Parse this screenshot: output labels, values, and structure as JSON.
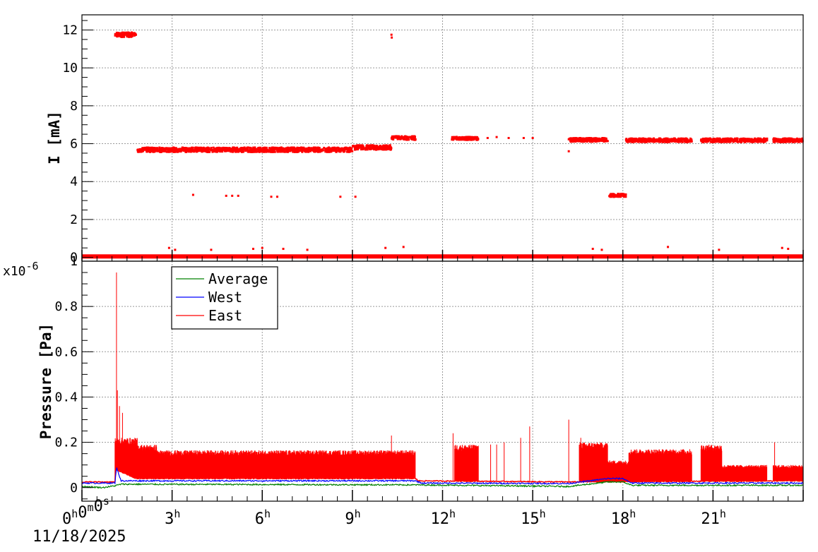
{
  "chart_data": [
    {
      "type": "scatter",
      "title": "",
      "xlabel": "",
      "ylabel": "I [mA]",
      "xlim": [
        0,
        24
      ],
      "ylim": [
        -0.2,
        12.8
      ],
      "yticks": [
        {
          "value": 0,
          "label": "0"
        },
        {
          "value": 2,
          "label": "2"
        },
        {
          "value": 4,
          "label": "4"
        },
        {
          "value": 6,
          "label": "6"
        },
        {
          "value": 8,
          "label": "8"
        },
        {
          "value": 10,
          "label": "10"
        },
        {
          "value": 12,
          "label": "12"
        }
      ],
      "grid": true,
      "color": "#ff0000",
      "segments": [
        {
          "x_start": 1.1,
          "x_end": 1.8,
          "y": 11.75,
          "jitter": 0.12
        },
        {
          "x_start": 1.85,
          "x_end": 9.0,
          "y": 5.68,
          "jitter": 0.12
        },
        {
          "x_start": 9.0,
          "x_end": 10.3,
          "y": 5.8,
          "jitter": 0.12
        },
        {
          "x_start": 10.3,
          "x_end": 11.1,
          "y": 6.3,
          "jitter": 0.1
        },
        {
          "x_start": 12.3,
          "x_end": 13.2,
          "y": 6.28,
          "jitter": 0.08
        },
        {
          "x_start": 16.2,
          "x_end": 17.5,
          "y": 6.2,
          "jitter": 0.1
        },
        {
          "x_start": 17.55,
          "x_end": 18.1,
          "y": 3.27,
          "jitter": 0.08
        },
        {
          "x_start": 18.1,
          "x_end": 20.3,
          "y": 6.18,
          "jitter": 0.1
        },
        {
          "x_start": 20.6,
          "x_end": 22.8,
          "y": 6.18,
          "jitter": 0.1
        },
        {
          "x_start": 23.0,
          "x_end": 24.0,
          "y": 6.18,
          "jitter": 0.1
        }
      ],
      "points": [
        {
          "x": 10.3,
          "y": 11.75
        },
        {
          "x": 10.31,
          "y": 11.6
        },
        {
          "x": 3.7,
          "y": 3.3
        },
        {
          "x": 4.8,
          "y": 3.25
        },
        {
          "x": 5.0,
          "y": 3.25
        },
        {
          "x": 5.2,
          "y": 3.25
        },
        {
          "x": 6.3,
          "y": 3.2
        },
        {
          "x": 6.5,
          "y": 3.2
        },
        {
          "x": 8.6,
          "y": 3.2
        },
        {
          "x": 9.1,
          "y": 3.2
        },
        {
          "x": 13.5,
          "y": 6.3
        },
        {
          "x": 13.8,
          "y": 6.35
        },
        {
          "x": 14.2,
          "y": 6.3
        },
        {
          "x": 14.7,
          "y": 6.3
        },
        {
          "x": 15.0,
          "y": 6.3
        },
        {
          "x": 16.2,
          "y": 5.6
        },
        {
          "x": 2.9,
          "y": 0.5
        },
        {
          "x": 3.1,
          "y": 0.4
        },
        {
          "x": 4.3,
          "y": 0.4
        },
        {
          "x": 5.7,
          "y": 0.45
        },
        {
          "x": 6.0,
          "y": 0.5
        },
        {
          "x": 6.7,
          "y": 0.45
        },
        {
          "x": 7.5,
          "y": 0.4
        },
        {
          "x": 10.1,
          "y": 0.5
        },
        {
          "x": 10.7,
          "y": 0.55
        },
        {
          "x": 17.0,
          "y": 0.45
        },
        {
          "x": 17.3,
          "y": 0.4
        },
        {
          "x": 19.5,
          "y": 0.55
        },
        {
          "x": 21.2,
          "y": 0.4
        },
        {
          "x": 23.3,
          "y": 0.5
        },
        {
          "x": 23.5,
          "y": 0.45
        }
      ],
      "baseline": {
        "y": 0.05,
        "x_start": 0,
        "x_end": 24
      }
    },
    {
      "type": "line",
      "title": "",
      "xlabel": "",
      "ylabel": "Pressure [Pa]",
      "y_multiplier": "x10",
      "y_multiplier_exp": "-6",
      "xlim": [
        0,
        24
      ],
      "ylim": [
        -0.06,
        1.0
      ],
      "yticks": [
        {
          "value": 0,
          "label": "0"
        },
        {
          "value": 0.2,
          "label": "0.2"
        },
        {
          "value": 0.4,
          "label": "0.4"
        },
        {
          "value": 0.6,
          "label": "0.6"
        },
        {
          "value": 0.8,
          "label": "0.8"
        },
        {
          "value": 1.0,
          "label": "1"
        }
      ],
      "grid": true,
      "legend_position": "top-left",
      "legend": [
        {
          "name": "Average",
          "color": "#008000"
        },
        {
          "name": "West",
          "color": "#0000ff"
        },
        {
          "name": "East",
          "color": "#ff0000"
        }
      ],
      "series": [
        {
          "name": "East",
          "color": "#ff0000",
          "baseline": [
            [
              0,
              0.025
            ],
            [
              1.1,
              0.025
            ],
            [
              1.12,
              0.08
            ],
            [
              1.8,
              0.04
            ],
            [
              11.1,
              0.04
            ],
            [
              11.2,
              0.03
            ],
            [
              16.2,
              0.025
            ],
            [
              24,
              0.03
            ]
          ],
          "bands": [
            {
              "x_start": 1.1,
              "x_end": 1.85,
              "peak": 0.22
            },
            {
              "x_start": 1.85,
              "x_end": 2.5,
              "peak": 0.19
            },
            {
              "x_start": 2.5,
              "x_end": 11.1,
              "peak": 0.165
            },
            {
              "x_start": 12.4,
              "x_end": 13.2,
              "peak": 0.19
            },
            {
              "x_start": 16.55,
              "x_end": 17.5,
              "peak": 0.2
            },
            {
              "x_start": 17.5,
              "x_end": 18.2,
              "peak": 0.12
            },
            {
              "x_start": 18.2,
              "x_end": 20.3,
              "peak": 0.17
            },
            {
              "x_start": 20.6,
              "x_end": 21.3,
              "peak": 0.19
            },
            {
              "x_start": 21.3,
              "x_end": 22.8,
              "peak": 0.1
            },
            {
              "x_start": 23.0,
              "x_end": 24.0,
              "peak": 0.1
            }
          ],
          "spikes": [
            {
              "x": 1.15,
              "y": 0.95
            },
            {
              "x": 1.18,
              "y": 0.43
            },
            {
              "x": 1.25,
              "y": 0.36
            },
            {
              "x": 1.35,
              "y": 0.33
            },
            {
              "x": 10.3,
              "y": 0.23
            },
            {
              "x": 12.35,
              "y": 0.24
            },
            {
              "x": 13.6,
              "y": 0.19
            },
            {
              "x": 13.8,
              "y": 0.19
            },
            {
              "x": 14.05,
              "y": 0.2
            },
            {
              "x": 14.6,
              "y": 0.22
            },
            {
              "x": 14.9,
              "y": 0.27
            },
            {
              "x": 16.2,
              "y": 0.3
            },
            {
              "x": 16.6,
              "y": 0.22
            },
            {
              "x": 23.05,
              "y": 0.2
            }
          ]
        },
        {
          "name": "West",
          "color": "#0000ff",
          "points": [
            [
              0,
              0.02
            ],
            [
              1.1,
              0.02
            ],
            [
              1.15,
              0.09
            ],
            [
              1.3,
              0.03
            ],
            [
              2.5,
              0.03
            ],
            [
              11.1,
              0.03
            ],
            [
              11.3,
              0.02
            ],
            [
              16.2,
              0.018
            ],
            [
              17.5,
              0.04
            ],
            [
              18.0,
              0.04
            ],
            [
              18.3,
              0.02
            ],
            [
              24,
              0.02
            ]
          ]
        },
        {
          "name": "Average",
          "color": "#008000",
          "points": [
            [
              0,
              0.005
            ],
            [
              0.7,
              0.0
            ],
            [
              1.1,
              0.008
            ],
            [
              1.3,
              0.015
            ],
            [
              11.1,
              0.012
            ],
            [
              16.2,
              0.005
            ],
            [
              17.5,
              0.025
            ],
            [
              18.0,
              0.025
            ],
            [
              18.3,
              0.01
            ],
            [
              24,
              0.01
            ]
          ]
        }
      ]
    }
  ],
  "x_axis": {
    "ticks": [
      {
        "value": 0,
        "main": "0",
        "sup": "h",
        "parts": [
          [
            "0",
            "h"
          ],
          [
            "0",
            "m"
          ],
          [
            "0",
            "s"
          ]
        ]
      },
      {
        "value": 3,
        "main": "3",
        "sup": "h"
      },
      {
        "value": 6,
        "main": "6",
        "sup": "h"
      },
      {
        "value": 9,
        "main": "9",
        "sup": "h"
      },
      {
        "value": 12,
        "main": "12",
        "sup": "h"
      },
      {
        "value": 15,
        "main": "15",
        "sup": "h"
      },
      {
        "value": 18,
        "main": "18",
        "sup": "h"
      },
      {
        "value": 21,
        "main": "21",
        "sup": "h"
      }
    ],
    "date": "11/18/2025"
  }
}
